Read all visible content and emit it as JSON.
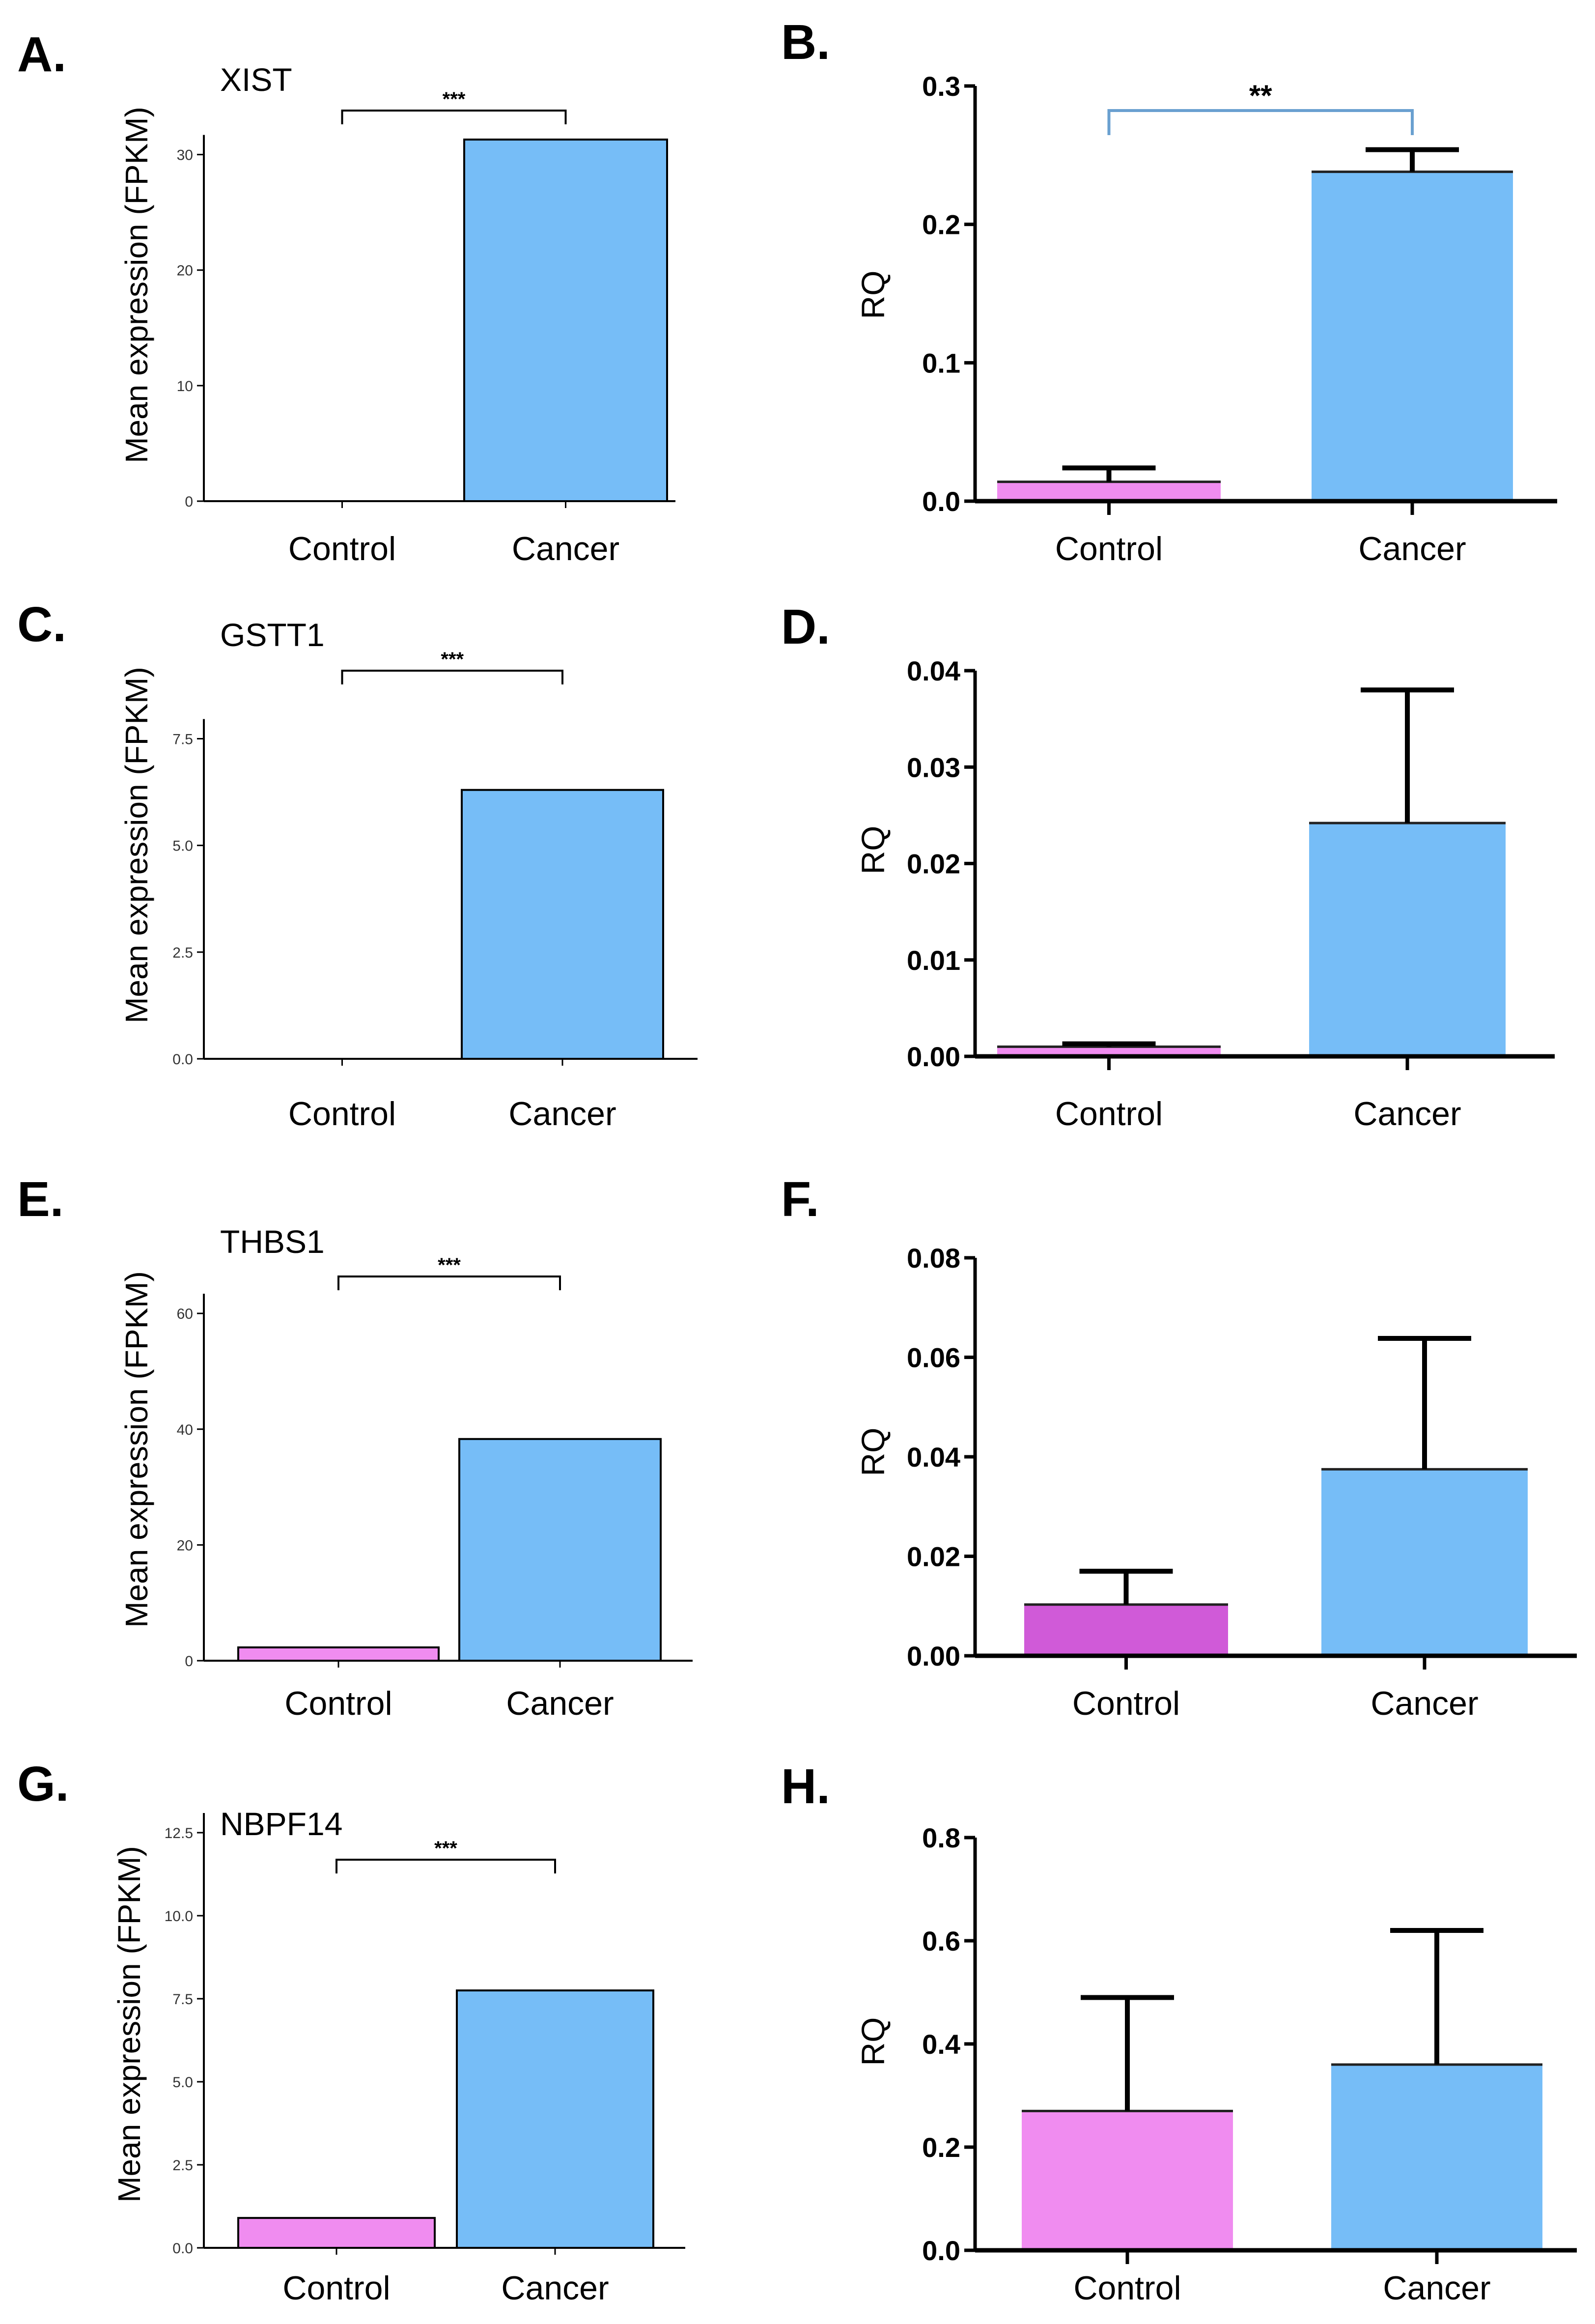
{
  "colors": {
    "control": "#f08cf0",
    "control_dark": "#d05ad8",
    "cancer": "#76bdf7",
    "axis": "#000000",
    "bracket_b": "#6aa0d0"
  },
  "chart_data": [
    {
      "panel": "A.",
      "type": "bar",
      "title": "XIST",
      "ylabel": "Mean expression (FPKM)",
      "categories": [
        "Control",
        "Cancer"
      ],
      "values": [
        0,
        31.3
      ],
      "ylim": [
        0,
        37
      ],
      "yticks": [
        0,
        10,
        20,
        30
      ],
      "ytick_labels": [
        "0",
        "10",
        "20",
        "30"
      ],
      "significance": "***"
    },
    {
      "panel": "B.",
      "type": "bar",
      "title": "",
      "ylabel": "RQ",
      "categories": [
        "Control",
        "Cancer"
      ],
      "values": [
        0.014,
        0.238
      ],
      "errors": [
        0.01,
        0.016
      ],
      "ylim": [
        0,
        0.3
      ],
      "yticks": [
        0.0,
        0.1,
        0.2,
        0.3
      ],
      "ytick_labels": [
        "0.0",
        "0.1",
        "0.2",
        "0.3"
      ],
      "significance": "**"
    },
    {
      "panel": "C.",
      "type": "bar",
      "title": "GSTT1",
      "ylabel": "Mean expression (FPKM)",
      "categories": [
        "Control",
        "Cancer"
      ],
      "values": [
        0,
        6.3
      ],
      "ylim": [
        0,
        9.9
      ],
      "yticks": [
        0.0,
        2.5,
        5.0,
        7.5
      ],
      "ytick_labels": [
        "0.0",
        "2.5",
        "5.0",
        "7.5"
      ],
      "significance": "***"
    },
    {
      "panel": "D.",
      "type": "bar",
      "title": "",
      "ylabel": "RQ",
      "categories": [
        "Control",
        "Cancer"
      ],
      "values": [
        0.001,
        0.0242
      ],
      "errors": [
        0.0003,
        0.0138
      ],
      "ylim": [
        0,
        0.04
      ],
      "yticks": [
        0.0,
        0.01,
        0.02,
        0.03,
        0.04
      ],
      "ytick_labels": [
        "0.00",
        "0.01",
        "0.02",
        "0.03",
        "0.04"
      ],
      "significance": ""
    },
    {
      "panel": "E.",
      "type": "bar",
      "title": "THBS1",
      "ylabel": "Mean expression (FPKM)",
      "categories": [
        "Control",
        "Cancer"
      ],
      "values": [
        2.3,
        38.3
      ],
      "ylim": [
        0,
        73
      ],
      "yticks": [
        0,
        20,
        40,
        60
      ],
      "ytick_labels": [
        "0",
        "20",
        "40",
        "60"
      ],
      "significance": "***"
    },
    {
      "panel": "F.",
      "type": "bar",
      "title": "",
      "ylabel": "RQ",
      "categories": [
        "Control",
        "Cancer"
      ],
      "values": [
        0.0103,
        0.0375
      ],
      "errors": [
        0.0067,
        0.0263
      ],
      "ylim": [
        0,
        0.08
      ],
      "yticks": [
        0.0,
        0.02,
        0.04,
        0.06,
        0.08
      ],
      "ytick_labels": [
        "0.00",
        "0.02",
        "0.04",
        "0.06",
        "0.08"
      ],
      "significance": ""
    },
    {
      "panel": "G.",
      "type": "bar",
      "title": "NBPF14",
      "ylabel": "Mean expression (FPKM)",
      "categories": [
        "Control",
        "Cancer"
      ],
      "values": [
        0.9,
        7.75
      ],
      "ylim": [
        0,
        12.5
      ],
      "yticks": [
        0.0,
        2.5,
        5.0,
        7.5,
        10.0,
        12.5
      ],
      "ytick_labels": [
        "0.0",
        "2.5",
        "5.0",
        "7.5",
        "10.0",
        "12.5"
      ],
      "significance": "***"
    },
    {
      "panel": "H.",
      "type": "bar",
      "title": "",
      "ylabel": "RQ",
      "categories": [
        "Control",
        "Cancer"
      ],
      "values": [
        0.27,
        0.36
      ],
      "errors": [
        0.22,
        0.26
      ],
      "ylim": [
        0,
        0.8
      ],
      "yticks": [
        0.0,
        0.2,
        0.4,
        0.6,
        0.8
      ],
      "ytick_labels": [
        "0.0",
        "0.2",
        "0.4",
        "0.6",
        "0.8"
      ],
      "significance": ""
    }
  ]
}
